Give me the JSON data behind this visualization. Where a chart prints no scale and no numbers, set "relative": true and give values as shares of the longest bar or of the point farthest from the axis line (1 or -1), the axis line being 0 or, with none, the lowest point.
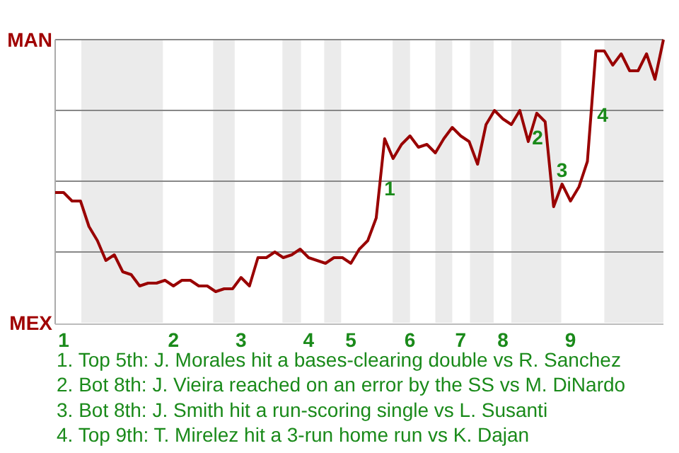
{
  "chart_data": {
    "type": "line",
    "categories": [
      null,
      "1",
      null,
      null,
      null,
      null,
      null,
      null,
      null,
      null,
      null,
      null,
      null,
      null,
      "2",
      null,
      null,
      null,
      null,
      null,
      null,
      null,
      "3",
      null,
      null,
      null,
      null,
      null,
      null,
      null,
      "4",
      null,
      null,
      null,
      null,
      "5",
      null,
      null,
      null,
      null,
      null,
      null,
      "6",
      null,
      null,
      null,
      null,
      null,
      "7",
      null,
      null,
      null,
      null,
      "8",
      null,
      null,
      null,
      null,
      null,
      null,
      null,
      "9",
      null,
      null,
      null,
      null,
      null,
      null,
      null,
      null,
      null,
      null,
      null
    ],
    "series": [
      {
        "color": "#990000",
        "values": [
          0.46,
          0.46,
          0.43,
          0.43,
          0.34,
          0.29,
          0.22,
          0.24,
          0.18,
          0.17,
          0.13,
          0.14,
          0.14,
          0.15,
          0.13,
          0.15,
          0.15,
          0.13,
          0.13,
          0.11,
          0.12,
          0.12,
          0.16,
          0.13,
          0.23,
          0.23,
          0.25,
          0.23,
          0.24,
          0.26,
          0.23,
          0.22,
          0.21,
          0.23,
          0.23,
          0.21,
          0.26,
          0.29,
          0.37,
          0.65,
          0.58,
          0.63,
          0.66,
          0.62,
          0.63,
          0.6,
          0.65,
          0.69,
          0.66,
          0.64,
          0.56,
          0.7,
          0.75,
          0.72,
          0.7,
          0.75,
          0.64,
          0.74,
          0.71,
          0.41,
          0.49,
          0.43,
          0.48,
          0.57,
          0.96,
          0.96,
          0.91,
          0.95,
          0.89,
          0.89,
          0.95,
          0.86,
          1.0
        ]
      }
    ],
    "relative": true,
    "grid": "y",
    "annotations": [
      "MAN",
      "MEX",
      "1",
      "2",
      "3",
      "4",
      "1. Top 5th: J. Morales hit a bases-clearing double vs R. Sanchez",
      "2. Bot 8th: J. Vieira reached on an error by the SS vs M. DiNardo",
      "3. Bot 8th: J. Smith hit a run-scoring single vs L. Susanti",
      "4. Top 9th: T. Mirelez hit a 3-run home run vs K. Dajan"
    ],
    "marker": "none",
    "line_style": "solid"
  }
}
